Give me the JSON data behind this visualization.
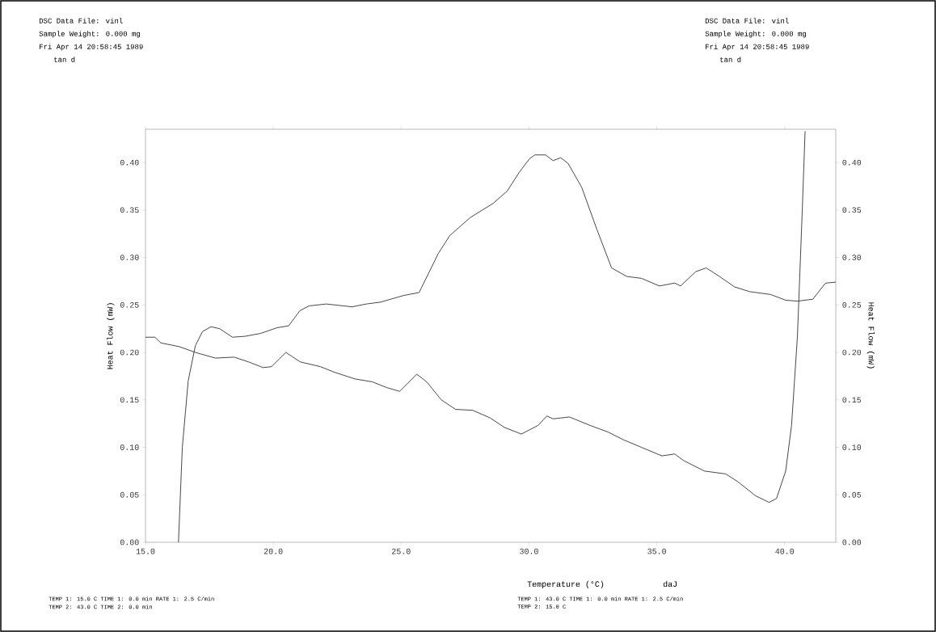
{
  "chart_data": {
    "type": "line",
    "xlabel": "Temperature (°C)",
    "ylabel": "Heat Flow (mW)",
    "y2label": "Heat Flow (mW)",
    "xlim": [
      15,
      42
    ],
    "ylim": [
      0,
      0.435
    ],
    "y2lim": [
      0,
      0.435
    ],
    "xticks": [
      {
        "value": 15,
        "label": "15.0"
      },
      {
        "value": 20,
        "label": "20.0"
      },
      {
        "value": 25,
        "label": "25.0"
      },
      {
        "value": 30,
        "label": "30.0"
      },
      {
        "value": 35,
        "label": "35.0"
      },
      {
        "value": 40,
        "label": "40.0"
      }
    ],
    "yticks": [
      {
        "value": 0,
        "label": "0.00"
      },
      {
        "value": 0.05,
        "label": "0.05"
      },
      {
        "value": 0.1,
        "label": "0.10"
      },
      {
        "value": 0.15,
        "label": "0.15"
      },
      {
        "value": 0.2,
        "label": "0.20"
      },
      {
        "value": 0.25,
        "label": "0.25"
      },
      {
        "value": 0.3,
        "label": "0.30"
      },
      {
        "value": 0.35,
        "label": "0.35"
      },
      {
        "value": 0.4,
        "label": "0.40"
      }
    ],
    "y2ticks": [
      {
        "value": 0,
        "label": "0.00"
      },
      {
        "value": 0.05,
        "label": "0.05"
      },
      {
        "value": 0.1,
        "label": "0.10"
      },
      {
        "value": 0.15,
        "label": "0.15"
      },
      {
        "value": 0.2,
        "label": "0.20"
      },
      {
        "value": 0.25,
        "label": "0.25"
      },
      {
        "value": 0.3,
        "label": "0.30"
      },
      {
        "value": 0.35,
        "label": "0.35"
      },
      {
        "value": 0.4,
        "label": "0.40"
      }
    ],
    "grid": false,
    "marker": "none",
    "line_style": "solid",
    "series": [
      {
        "color": "#333333",
        "x": [
          16.29,
          16.44,
          16.67,
          16.95,
          17.23,
          17.56,
          17.9,
          18.4,
          18.9,
          19.5,
          20.15,
          20.6,
          21.04,
          21.4,
          22.07,
          23.08,
          23.64,
          24.2,
          25.1,
          25.7,
          26.45,
          26.9,
          27.7,
          28.6,
          29.15,
          29.6,
          30.02,
          30.23,
          30.65,
          30.94,
          31.24,
          31.53,
          32.06,
          32.65,
          33.23,
          33.82,
          34.4,
          35.1,
          35.7,
          35.93,
          36.52,
          36.93,
          37.45,
          38.04,
          38.63,
          39.45,
          40.04,
          40.5,
          41.1,
          41.6,
          42.0
        ],
        "values": [
          0.0,
          0.1,
          0.17,
          0.207,
          0.222,
          0.227,
          0.225,
          0.216,
          0.217,
          0.22,
          0.226,
          0.228,
          0.244,
          0.249,
          0.251,
          0.248,
          0.251,
          0.253,
          0.26,
          0.263,
          0.304,
          0.323,
          0.342,
          0.357,
          0.37,
          0.389,
          0.404,
          0.408,
          0.408,
          0.402,
          0.405,
          0.399,
          0.374,
          0.33,
          0.289,
          0.28,
          0.278,
          0.27,
          0.273,
          0.27,
          0.285,
          0.289,
          0.28,
          0.269,
          0.264,
          0.261,
          0.255,
          0.254,
          0.256,
          0.273,
          0.274
        ]
      },
      {
        "color": "#333333",
        "x": [
          15.0,
          15.37,
          15.6,
          16.33,
          16.95,
          17.73,
          18.47,
          19.03,
          19.6,
          19.93,
          20.49,
          21.05,
          21.84,
          22.4,
          23.2,
          23.87,
          24.43,
          24.94,
          25.61,
          26.0,
          26.57,
          27.13,
          27.8,
          28.48,
          29.04,
          29.7,
          30.35,
          30.7,
          30.94,
          31.58,
          32.4,
          33.1,
          33.69,
          34.4,
          35.2,
          35.7,
          36.05,
          36.87,
          37.69,
          38.16,
          38.86,
          39.39,
          39.68,
          40.04,
          40.27,
          40.5,
          40.68,
          40.8
        ],
        "values": [
          0.216,
          0.216,
          0.21,
          0.206,
          0.2,
          0.194,
          0.195,
          0.19,
          0.184,
          0.185,
          0.2,
          0.19,
          0.185,
          0.179,
          0.172,
          0.169,
          0.163,
          0.159,
          0.177,
          0.169,
          0.15,
          0.14,
          0.139,
          0.131,
          0.121,
          0.114,
          0.123,
          0.133,
          0.13,
          0.132,
          0.123,
          0.116,
          0.108,
          0.1,
          0.091,
          0.093,
          0.086,
          0.075,
          0.072,
          0.064,
          0.049,
          0.042,
          0.046,
          0.075,
          0.123,
          0.217,
          0.343,
          0.433
        ]
      }
    ],
    "annotations": [
      "DSC Data File: vinl",
      "Sample Weight:   0.000 mg",
      "Fri Apr 14 20:58:45 1989",
      "tan d",
      "DSC Data File: vinl",
      "Sample Weight:   0.000 mg",
      "Fri Apr 14 20:58:45 1989",
      "tan d",
      "TEMP 1:  15.0 C  TIME 1:  0.0 min RATE 1:  2.5 C/min",
      "TEMP 2:  43.0 C  TIME 2:  0.0 min",
      "TEMP 1:  43.0 C  TIME 1:  0.0 min RATE 1:  2.5 C/min",
      "TEMP 2:  15.0 C",
      "daJ"
    ]
  }
}
